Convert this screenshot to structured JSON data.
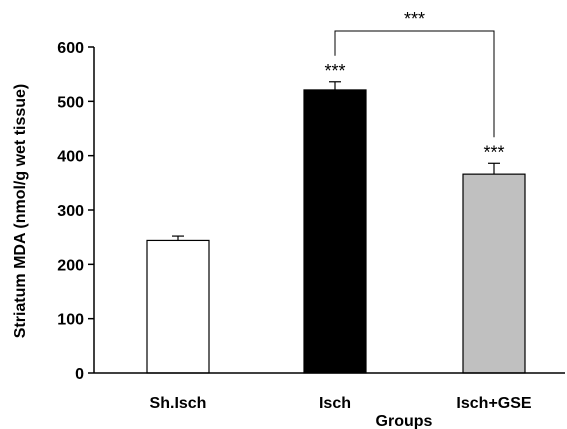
{
  "chart_data": {
    "type": "bar",
    "categories": [
      "Sh.Isch",
      "Isch",
      "Isch+GSE"
    ],
    "values": [
      244,
      521,
      366
    ],
    "errors": [
      8,
      15,
      20
    ],
    "bar_colors": [
      "#ffffff",
      "#000000",
      "#c0c0c0"
    ],
    "title": "",
    "xlabel": "Groups",
    "ylabel": "Striatum MDA (nmol/g wet tissue)",
    "ylim": [
      0,
      600
    ],
    "yticks": [
      "0",
      "100",
      "200",
      "300",
      "400",
      "500",
      "600"
    ],
    "grid": false,
    "bar_annotations": [
      "",
      "***",
      "***"
    ],
    "bracket": {
      "from": "Isch",
      "to": "Isch+GSE",
      "label": "***"
    }
  }
}
